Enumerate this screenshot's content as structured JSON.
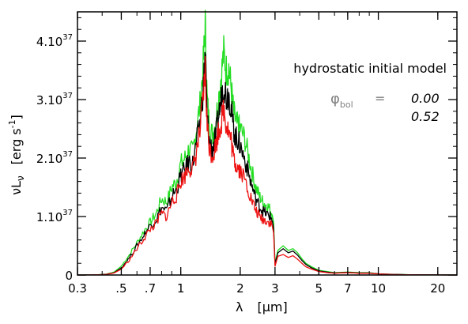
{
  "chart_data": {
    "type": "line",
    "title": "hydrostatic initial model",
    "xlabel": {
      "symbol": "λ",
      "unit": "[μm]"
    },
    "ylabel": {
      "symbol": "νL",
      "subscript": "ν",
      "unit": "[erg s",
      "unit_exp": "-1",
      "unit_close": "]"
    },
    "xscale": "log",
    "xlim": [
      0.3,
      25
    ],
    "ylim": [
      0,
      4.5e+37
    ],
    "xticks": [
      {
        "value": 0.3,
        "label": "0.3"
      },
      {
        "value": 0.5,
        "label": ".5"
      },
      {
        "value": 0.7,
        "label": ".7"
      },
      {
        "value": 1,
        "label": "1"
      },
      {
        "value": 2,
        "label": "2"
      },
      {
        "value": 3,
        "label": "3"
      },
      {
        "value": 5,
        "label": "5"
      },
      {
        "value": 7,
        "label": "7"
      },
      {
        "value": 10,
        "label": "10"
      },
      {
        "value": 20,
        "label": "20"
      }
    ],
    "yticks": [
      {
        "value": 0,
        "label": "0"
      },
      {
        "value": 1e+37,
        "mant": "1.10",
        "exp": "37"
      },
      {
        "value": 2e+37,
        "mant": "2.10",
        "exp": "37"
      },
      {
        "value": 3e+37,
        "mant": "3.10",
        "exp": "37"
      },
      {
        "value": 4e+37,
        "mant": "4.10",
        "exp": "37"
      }
    ],
    "legend": {
      "label": "φ",
      "label_sub": "bol",
      "equals": "=",
      "position": "top-right",
      "entries": [
        {
          "text": "0.00",
          "color": "#22dd22"
        },
        {
          "text": "0.52",
          "color": "#ee1111"
        }
      ]
    },
    "series": [
      {
        "color": "#22dd22",
        "x": [
          0.3,
          0.34,
          0.38,
          0.42,
          0.46,
          0.5,
          0.55,
          0.6,
          0.65,
          0.7,
          0.75,
          0.8,
          0.85,
          0.9,
          0.95,
          1.0,
          1.05,
          1.1,
          1.15,
          1.2,
          1.25,
          1.3,
          1.33,
          1.36,
          1.4,
          1.45,
          1.5,
          1.55,
          1.6,
          1.65,
          1.7,
          1.75,
          1.8,
          1.85,
          1.9,
          1.95,
          2.0,
          2.1,
          2.2,
          2.3,
          2.4,
          2.5,
          2.6,
          2.7,
          2.8,
          2.9,
          2.95,
          3.0,
          3.1,
          3.3,
          3.5,
          3.7,
          3.9,
          4.1,
          4.3,
          4.6,
          5.0,
          5.5,
          6.0,
          7.0,
          8.0,
          9.0,
          10.0,
          12.0,
          15.0,
          20.0,
          25.0
        ],
        "y": [
          0,
          0.001,
          0.005,
          0.015,
          0.05,
          0.15,
          0.35,
          0.55,
          0.75,
          0.9,
          1.05,
          1.3,
          1.25,
          1.5,
          1.6,
          1.9,
          2.0,
          2.15,
          2.1,
          2.5,
          2.9,
          3.6,
          4.3,
          3.0,
          2.5,
          2.4,
          2.6,
          3.0,
          3.4,
          3.8,
          3.5,
          3.55,
          3.2,
          2.8,
          2.6,
          2.55,
          2.5,
          2.35,
          2.05,
          1.75,
          1.5,
          1.35,
          1.25,
          1.2,
          1.15,
          1.05,
          0.9,
          0.2,
          0.42,
          0.5,
          0.42,
          0.45,
          0.38,
          0.28,
          0.2,
          0.14,
          0.08,
          0.06,
          0.04,
          0.05,
          0.04,
          0.04,
          0.02,
          0.01,
          0.005,
          0.002,
          0.0
        ]
      },
      {
        "color": "#000000",
        "x": [
          0.3,
          0.34,
          0.38,
          0.42,
          0.46,
          0.5,
          0.55,
          0.6,
          0.65,
          0.7,
          0.75,
          0.8,
          0.85,
          0.9,
          0.95,
          1.0,
          1.05,
          1.1,
          1.15,
          1.2,
          1.25,
          1.3,
          1.33,
          1.36,
          1.4,
          1.45,
          1.5,
          1.55,
          1.6,
          1.65,
          1.7,
          1.75,
          1.8,
          1.85,
          1.9,
          1.95,
          2.0,
          2.1,
          2.2,
          2.3,
          2.4,
          2.5,
          2.6,
          2.7,
          2.8,
          2.9,
          2.95,
          3.0,
          3.1,
          3.3,
          3.5,
          3.7,
          3.9,
          4.1,
          4.3,
          4.6,
          5.0,
          5.5,
          6.0,
          7.0,
          8.0,
          9.0,
          10.0,
          12.0,
          15.0,
          20.0,
          25.0
        ],
        "y": [
          0,
          0.001,
          0.004,
          0.012,
          0.04,
          0.12,
          0.3,
          0.5,
          0.68,
          0.85,
          0.95,
          1.15,
          1.1,
          1.35,
          1.45,
          1.7,
          1.8,
          1.95,
          1.9,
          2.25,
          2.6,
          3.2,
          3.8,
          2.7,
          2.25,
          2.15,
          2.35,
          2.7,
          3.0,
          3.3,
          3.05,
          3.1,
          2.85,
          2.5,
          2.35,
          2.3,
          2.2,
          2.0,
          1.75,
          1.5,
          1.3,
          1.18,
          1.1,
          1.05,
          1.02,
          0.95,
          0.8,
          0.18,
          0.38,
          0.45,
          0.38,
          0.41,
          0.34,
          0.25,
          0.18,
          0.12,
          0.07,
          0.05,
          0.035,
          0.045,
          0.035,
          0.035,
          0.02,
          0.01,
          0.004,
          0.002,
          0.0
        ]
      },
      {
        "color": "#ee1111",
        "x": [
          0.3,
          0.34,
          0.38,
          0.42,
          0.46,
          0.5,
          0.55,
          0.6,
          0.65,
          0.7,
          0.75,
          0.8,
          0.85,
          0.9,
          0.95,
          1.0,
          1.05,
          1.1,
          1.15,
          1.2,
          1.25,
          1.3,
          1.33,
          1.36,
          1.4,
          1.45,
          1.5,
          1.55,
          1.6,
          1.65,
          1.7,
          1.75,
          1.8,
          1.85,
          1.9,
          1.95,
          2.0,
          2.1,
          2.2,
          2.3,
          2.4,
          2.5,
          2.6,
          2.7,
          2.8,
          2.9,
          2.95,
          3.0,
          3.1,
          3.3,
          3.5,
          3.7,
          3.9,
          4.1,
          4.3,
          4.6,
          5.0,
          5.5,
          6.0,
          7.0,
          8.0,
          9.0,
          10.0,
          12.0,
          15.0,
          20.0,
          25.0
        ],
        "y": [
          0,
          0.001,
          0.004,
          0.01,
          0.035,
          0.1,
          0.26,
          0.45,
          0.62,
          0.78,
          0.88,
          1.05,
          1.0,
          1.25,
          1.35,
          1.6,
          1.7,
          1.85,
          1.8,
          2.1,
          2.45,
          3.0,
          3.5,
          2.55,
          2.15,
          2.05,
          2.2,
          2.45,
          2.6,
          2.85,
          2.6,
          2.45,
          2.3,
          2.0,
          1.9,
          1.85,
          1.8,
          1.65,
          1.45,
          1.25,
          1.1,
          1.0,
          0.95,
          0.93,
          0.9,
          0.85,
          0.72,
          0.15,
          0.32,
          0.35,
          0.3,
          0.33,
          0.27,
          0.2,
          0.14,
          0.1,
          0.06,
          0.04,
          0.03,
          0.04,
          0.03,
          0.03,
          0.018,
          0.008,
          0.003,
          0.001,
          0.0
        ]
      }
    ]
  }
}
